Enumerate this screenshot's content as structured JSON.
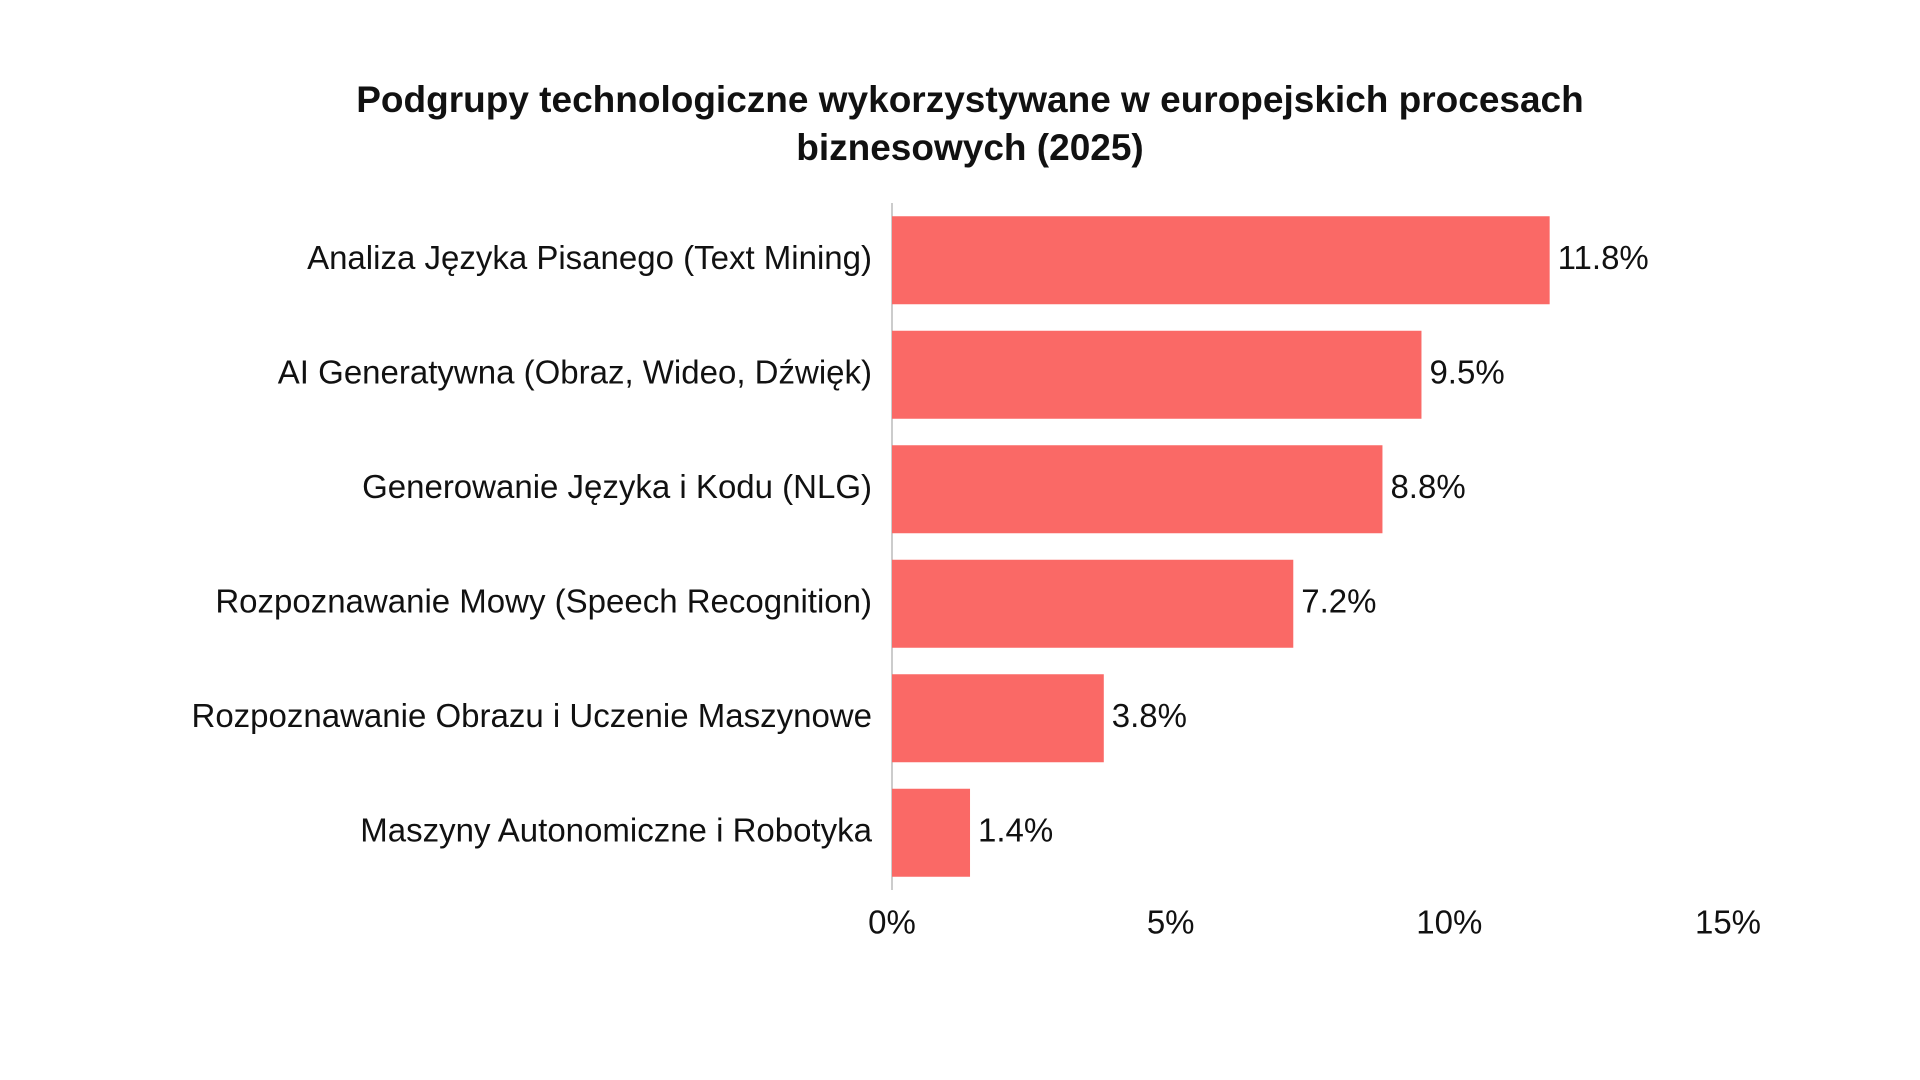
{
  "chart_data": {
    "type": "barh",
    "title": "Podgrupy technologiczne wykorzystywane w europejskich procesach biznesowych (2025)",
    "categories": [
      "Analiza Języka Pisanego (Text Mining)",
      "AI Generatywna (Obraz, Wideo, Dźwięk)",
      "Generowanie Języka i Kodu (NLG)",
      "Rozpoznawanie Mowy (Speech Recognition)",
      "Rozpoznawanie Obrazu i Uczenie Maszynowe",
      "Maszyny Autonomiczne i Robotyka"
    ],
    "values": [
      11.8,
      9.5,
      8.8,
      7.2,
      3.8,
      1.4
    ],
    "value_labels": [
      "11.8%",
      "9.5%",
      "8.8%",
      "7.2%",
      "3.8%",
      "1.4%"
    ],
    "color": "#fa6966",
    "xlim": [
      0,
      15
    ],
    "xticks": [
      {
        "value": 0,
        "label": "0%"
      },
      {
        "value": 5,
        "label": "5%"
      },
      {
        "value": 10,
        "label": "10%"
      },
      {
        "value": 15,
        "label": "15%"
      }
    ],
    "grid": false
  }
}
